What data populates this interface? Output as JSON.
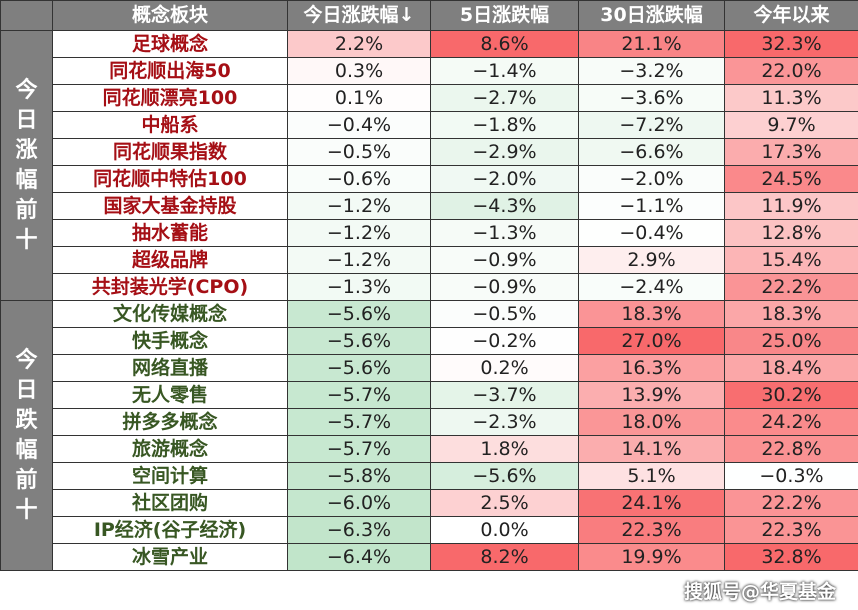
{
  "chart_data": {
    "type": "heatmap",
    "columns": [
      "概念板块",
      "今日涨跌幅↓",
      "5日涨跌幅",
      "30日涨跌幅",
      "今年以来"
    ],
    "groups": [
      {
        "label": "今日涨幅前十",
        "rows": [
          [
            "足球概念",
            "2.2%",
            "8.6%",
            "21.1%",
            "32.3%"
          ],
          [
            "同花顺出海50",
            "0.3%",
            "−1.4%",
            "−3.2%",
            "22.0%"
          ],
          [
            "同花顺漂亮100",
            "0.1%",
            "−2.7%",
            "−3.6%",
            "11.3%"
          ],
          [
            "中船系",
            "−0.4%",
            "−1.8%",
            "−7.2%",
            "9.7%"
          ],
          [
            "同花顺果指数",
            "−0.5%",
            "−2.9%",
            "−6.6%",
            "17.3%"
          ],
          [
            "同花顺中特估100",
            "−0.6%",
            "−2.0%",
            "−2.0%",
            "24.5%"
          ],
          [
            "国家大基金持股",
            "−1.2%",
            "−4.3%",
            "−1.1%",
            "11.9%"
          ],
          [
            "抽水蓄能",
            "−1.2%",
            "−1.3%",
            "−0.4%",
            "12.8%"
          ],
          [
            "超级品牌",
            "−1.2%",
            "−0.9%",
            "2.9%",
            "15.4%"
          ],
          [
            "共封装光学(CPO)",
            "−1.3%",
            "−0.9%",
            "−2.4%",
            "22.2%"
          ]
        ]
      },
      {
        "label": "今日跌幅前十",
        "rows": [
          [
            "文化传媒概念",
            "−5.6%",
            "−0.5%",
            "18.3%",
            "18.3%"
          ],
          [
            "快手概念",
            "−5.6%",
            "−0.2%",
            "27.0%",
            "25.0%"
          ],
          [
            "网络直播",
            "−5.6%",
            "0.2%",
            "16.3%",
            "18.4%"
          ],
          [
            "无人零售",
            "−5.7%",
            "−3.7%",
            "13.9%",
            "30.2%"
          ],
          [
            "拼多多概念",
            "−5.7%",
            "−2.3%",
            "18.0%",
            "24.2%"
          ],
          [
            "旅游概念",
            "−5.7%",
            "1.8%",
            "14.1%",
            "22.8%"
          ],
          [
            "空间计算",
            "−5.8%",
            "−5.6%",
            "5.1%",
            "−0.3%"
          ],
          [
            "社区团购",
            "−6.0%",
            "2.5%",
            "24.1%",
            "22.2%"
          ],
          [
            "IP经济(谷子经济)",
            "−6.3%",
            "0.0%",
            "22.3%",
            "22.3%"
          ],
          [
            "冰雪产业",
            "−6.4%",
            "8.2%",
            "19.9%",
            "32.8%"
          ]
        ]
      }
    ],
    "colors": {
      "header": "#7f7f7f",
      "positive": "#f8696b",
      "negative": "#63be7b",
      "up_name": "#a50f15",
      "down_name": "#385723"
    }
  },
  "watermark": "搜狐号@华夏基金"
}
